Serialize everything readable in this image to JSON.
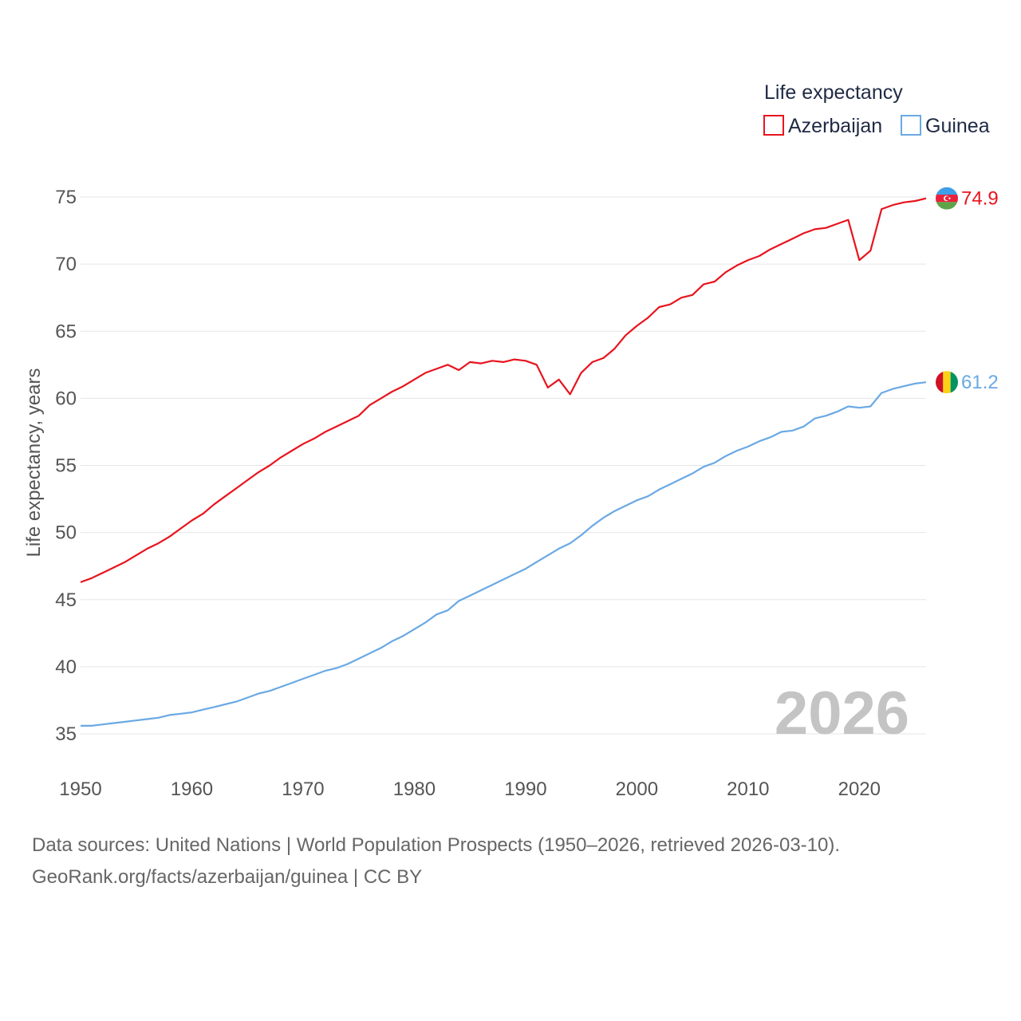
{
  "chart_data": {
    "type": "line",
    "legend_title": "Life expectancy",
    "ylabel": "Life expectancy, years",
    "xlabel": "",
    "xlim": [
      1950,
      2026
    ],
    "ylim": [
      35,
      75
    ],
    "x_ticks": [
      1950,
      1960,
      1970,
      1980,
      1990,
      2000,
      2010,
      2020
    ],
    "y_ticks": [
      35,
      40,
      45,
      50,
      55,
      60,
      65,
      70,
      75
    ],
    "year_label": "2026",
    "x": [
      1950,
      1951,
      1952,
      1953,
      1954,
      1955,
      1956,
      1957,
      1958,
      1959,
      1960,
      1961,
      1962,
      1963,
      1964,
      1965,
      1966,
      1967,
      1968,
      1969,
      1970,
      1971,
      1972,
      1973,
      1974,
      1975,
      1976,
      1977,
      1978,
      1979,
      1980,
      1981,
      1982,
      1983,
      1984,
      1985,
      1986,
      1987,
      1988,
      1989,
      1990,
      1991,
      1992,
      1993,
      1994,
      1995,
      1996,
      1997,
      1998,
      1999,
      2000,
      2001,
      2002,
      2003,
      2004,
      2005,
      2006,
      2007,
      2008,
      2009,
      2010,
      2011,
      2012,
      2013,
      2014,
      2015,
      2016,
      2017,
      2018,
      2019,
      2020,
      2021,
      2022,
      2023,
      2024,
      2025,
      2026
    ],
    "series": [
      {
        "name": "Azerbaijan",
        "color": "#e8141e",
        "end_label": "74.9",
        "values": [
          46.3,
          46.6,
          47.0,
          47.4,
          47.8,
          48.3,
          48.8,
          49.2,
          49.7,
          50.3,
          50.9,
          51.4,
          52.1,
          52.7,
          53.3,
          53.9,
          54.5,
          55.0,
          55.6,
          56.1,
          56.6,
          57.0,
          57.5,
          57.9,
          58.3,
          58.7,
          59.5,
          60.0,
          60.5,
          60.9,
          61.4,
          61.9,
          62.2,
          62.5,
          62.1,
          62.7,
          62.6,
          62.8,
          62.7,
          62.9,
          62.8,
          62.5,
          60.8,
          61.4,
          60.3,
          61.9,
          62.7,
          63.0,
          63.7,
          64.7,
          65.4,
          66.0,
          66.8,
          67.0,
          67.5,
          67.7,
          68.5,
          68.7,
          69.4,
          69.9,
          70.3,
          70.6,
          71.1,
          71.5,
          71.9,
          72.3,
          72.6,
          72.7,
          73.0,
          73.3,
          70.3,
          71.0,
          74.1,
          74.4,
          74.6,
          74.7,
          74.9
        ]
      },
      {
        "name": "Guinea",
        "color": "#6aa9e4",
        "end_label": "61.2",
        "values": [
          35.6,
          35.6,
          35.7,
          35.8,
          35.9,
          36.0,
          36.1,
          36.2,
          36.4,
          36.5,
          36.6,
          36.8,
          37.0,
          37.2,
          37.4,
          37.7,
          38.0,
          38.2,
          38.5,
          38.8,
          39.1,
          39.4,
          39.7,
          39.9,
          40.2,
          40.6,
          41.0,
          41.4,
          41.9,
          42.3,
          42.8,
          43.3,
          43.9,
          44.2,
          44.9,
          45.3,
          45.7,
          46.1,
          46.5,
          46.9,
          47.3,
          47.8,
          48.3,
          48.8,
          49.2,
          49.8,
          50.5,
          51.1,
          51.6,
          52.0,
          52.4,
          52.7,
          53.2,
          53.6,
          54.0,
          54.4,
          54.9,
          55.2,
          55.7,
          56.1,
          56.4,
          56.8,
          57.1,
          57.5,
          57.6,
          57.9,
          58.5,
          58.7,
          59.0,
          59.4,
          59.3,
          59.4,
          60.4,
          60.7,
          60.9,
          61.1,
          61.2
        ]
      }
    ]
  },
  "flags": {
    "azerbaijan": {
      "blue": "#3f9ee8",
      "red": "#e8223a",
      "green": "#5da548"
    },
    "guinea": {
      "red": "#ce1126",
      "yellow": "#fcd116",
      "green": "#009460"
    }
  },
  "footer": {
    "source_line": "Data sources: United Nations | World Population Prospects (1950–2026, retrieved 2026-03-10).",
    "credit_line": "GeoRank.org/facts/azerbaijan/guinea | CC BY"
  }
}
